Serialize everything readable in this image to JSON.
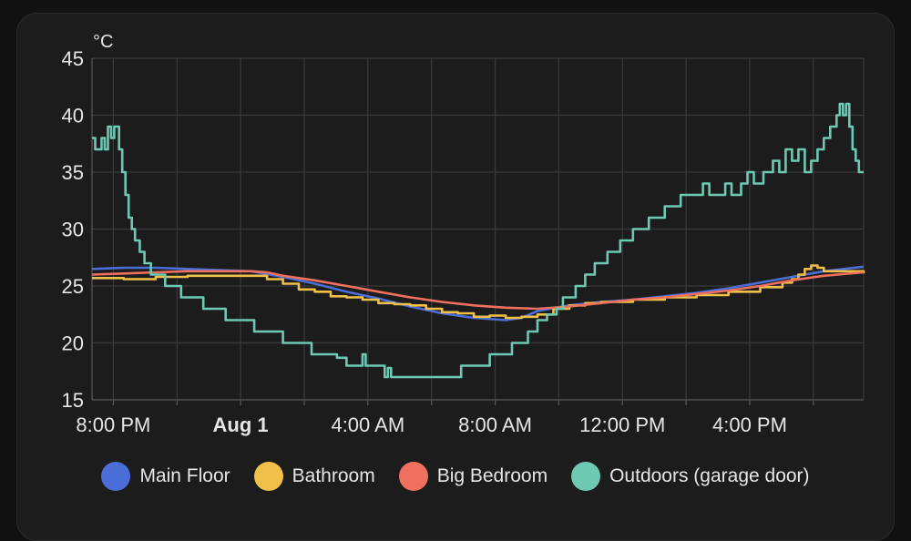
{
  "chart_data": {
    "type": "line",
    "unit": "°C",
    "ylim": [
      15,
      45
    ],
    "y_ticks": [
      15,
      20,
      25,
      30,
      35,
      40,
      45
    ],
    "x_range": [
      "Jul 31 7:20 PM",
      "Aug 1 7:35 PM"
    ],
    "x_ticks": [
      {
        "label": "8:00 PM",
        "t": 0.67,
        "bold": false
      },
      {
        "label": "Aug 1",
        "t": 4.67,
        "bold": true
      },
      {
        "label": "4:00 AM",
        "t": 8.67,
        "bold": false
      },
      {
        "label": "8:00 AM",
        "t": 12.67,
        "bold": false
      },
      {
        "label": "12:00 PM",
        "t": 16.67,
        "bold": false
      },
      {
        "label": "4:00 PM",
        "t": 20.67,
        "bold": false
      }
    ],
    "x_minor_ticks": [
      2.67,
      6.67,
      10.67,
      14.67,
      18.67,
      22.67
    ],
    "grid": true,
    "legend_position": "bottom",
    "series": [
      {
        "name": "Main Floor",
        "color": "#4a6dd8",
        "step": false,
        "points": [
          [
            0,
            26.5
          ],
          [
            1,
            26.6
          ],
          [
            2,
            26.6
          ],
          [
            3,
            26.5
          ],
          [
            4,
            26.4
          ],
          [
            5,
            26.3
          ],
          [
            6,
            25.8
          ],
          [
            7,
            25.2
          ],
          [
            8,
            24.5
          ],
          [
            9,
            23.9
          ],
          [
            10,
            23.2
          ],
          [
            11,
            22.6
          ],
          [
            12,
            22.2
          ],
          [
            13,
            22.0
          ],
          [
            13.5,
            22.2
          ],
          [
            14,
            22.8
          ],
          [
            15,
            23.3
          ],
          [
            16,
            23.6
          ],
          [
            17,
            23.8
          ],
          [
            18,
            24.1
          ],
          [
            19,
            24.4
          ],
          [
            20,
            24.8
          ],
          [
            21,
            25.3
          ],
          [
            22,
            25.8
          ],
          [
            23,
            26.3
          ],
          [
            24.25,
            26.7
          ]
        ]
      },
      {
        "name": "Bathroom",
        "color": "#f0c048",
        "step": true,
        "points": [
          [
            0,
            25.7
          ],
          [
            1,
            25.6
          ],
          [
            2,
            25.8
          ],
          [
            3,
            25.9
          ],
          [
            4,
            25.9
          ],
          [
            5,
            25.9
          ],
          [
            5.5,
            25.6
          ],
          [
            6,
            25.2
          ],
          [
            6.5,
            24.7
          ],
          [
            7,
            24.5
          ],
          [
            7.5,
            24.1
          ],
          [
            8,
            24.0
          ],
          [
            8.5,
            23.8
          ],
          [
            9,
            23.5
          ],
          [
            9.5,
            23.4
          ],
          [
            10,
            23.3
          ],
          [
            10.5,
            23.0
          ],
          [
            11,
            22.7
          ],
          [
            11.5,
            22.6
          ],
          [
            12,
            22.3
          ],
          [
            12.5,
            22.4
          ],
          [
            13,
            22.2
          ],
          [
            13.5,
            22.3
          ],
          [
            14,
            22.5
          ],
          [
            14.5,
            23.0
          ],
          [
            15,
            23.3
          ],
          [
            15.5,
            23.5
          ],
          [
            16,
            23.6
          ],
          [
            17,
            23.8
          ],
          [
            18,
            24.0
          ],
          [
            19,
            24.2
          ],
          [
            20,
            24.5
          ],
          [
            21,
            24.9
          ],
          [
            21.7,
            25.3
          ],
          [
            22,
            25.6
          ],
          [
            22.2,
            26.0
          ],
          [
            22.4,
            26.5
          ],
          [
            22.6,
            26.8
          ],
          [
            22.8,
            26.6
          ],
          [
            23,
            26.3
          ],
          [
            24.25,
            26.1
          ]
        ]
      },
      {
        "name": "Big Bedroom",
        "color": "#f07060",
        "step": false,
        "points": [
          [
            0,
            26.0
          ],
          [
            1,
            26.1
          ],
          [
            2,
            26.2
          ],
          [
            3,
            26.3
          ],
          [
            4,
            26.3
          ],
          [
            5,
            26.3
          ],
          [
            5.5,
            26.2
          ],
          [
            6,
            25.9
          ],
          [
            7,
            25.5
          ],
          [
            8,
            25.0
          ],
          [
            9,
            24.5
          ],
          [
            10,
            24.0
          ],
          [
            11,
            23.6
          ],
          [
            12,
            23.3
          ],
          [
            13,
            23.1
          ],
          [
            14,
            23.0
          ],
          [
            15,
            23.2
          ],
          [
            16,
            23.5
          ],
          [
            17,
            23.8
          ],
          [
            18,
            24.0
          ],
          [
            19,
            24.3
          ],
          [
            20,
            24.6
          ],
          [
            21,
            25.0
          ],
          [
            22,
            25.5
          ],
          [
            23,
            25.9
          ],
          [
            24.25,
            26.2
          ]
        ]
      },
      {
        "name": "Outdoors (garage door)",
        "color": "#6ec9b3",
        "step": true,
        "points": [
          [
            0,
            38
          ],
          [
            0.1,
            37
          ],
          [
            0.3,
            38
          ],
          [
            0.4,
            37
          ],
          [
            0.5,
            39
          ],
          [
            0.6,
            38
          ],
          [
            0.7,
            39
          ],
          [
            0.85,
            37
          ],
          [
            0.95,
            35
          ],
          [
            1.05,
            33
          ],
          [
            1.15,
            31
          ],
          [
            1.25,
            30
          ],
          [
            1.35,
            29
          ],
          [
            1.5,
            28
          ],
          [
            1.65,
            27
          ],
          [
            1.85,
            26
          ],
          [
            2.3,
            25
          ],
          [
            2.8,
            24
          ],
          [
            3.5,
            23
          ],
          [
            4.2,
            22
          ],
          [
            5.1,
            21
          ],
          [
            6.0,
            20
          ],
          [
            6.9,
            19
          ],
          [
            7.7,
            18.7
          ],
          [
            8.0,
            18
          ],
          [
            8.5,
            19
          ],
          [
            8.6,
            18
          ],
          [
            9.2,
            17
          ],
          [
            9.3,
            17.8
          ],
          [
            9.4,
            17
          ],
          [
            11.6,
            18
          ],
          [
            12.5,
            19
          ],
          [
            13.0,
            19
          ],
          [
            13.2,
            20
          ],
          [
            13.5,
            20
          ],
          [
            13.7,
            21
          ],
          [
            14.0,
            22
          ],
          [
            14.3,
            22.5
          ],
          [
            14.6,
            23
          ],
          [
            14.8,
            24
          ],
          [
            15.2,
            25
          ],
          [
            15.5,
            26
          ],
          [
            15.8,
            27
          ],
          [
            16.2,
            28
          ],
          [
            16.6,
            29
          ],
          [
            17.0,
            30
          ],
          [
            17.5,
            31
          ],
          [
            18.0,
            32
          ],
          [
            18.5,
            33
          ],
          [
            19.0,
            33
          ],
          [
            19.2,
            34
          ],
          [
            19.4,
            33
          ],
          [
            19.7,
            33
          ],
          [
            19.9,
            34
          ],
          [
            20.1,
            33
          ],
          [
            20.4,
            34
          ],
          [
            20.6,
            35
          ],
          [
            20.8,
            34
          ],
          [
            21.1,
            35
          ],
          [
            21.4,
            36
          ],
          [
            21.6,
            35
          ],
          [
            21.8,
            37
          ],
          [
            22.0,
            36
          ],
          [
            22.2,
            37
          ],
          [
            22.4,
            35
          ],
          [
            22.6,
            36
          ],
          [
            22.8,
            37
          ],
          [
            23.0,
            38
          ],
          [
            23.2,
            39
          ],
          [
            23.4,
            40
          ],
          [
            23.5,
            41
          ],
          [
            23.6,
            40
          ],
          [
            23.7,
            41
          ],
          [
            23.8,
            39
          ],
          [
            23.9,
            37
          ],
          [
            24.0,
            36
          ],
          [
            24.1,
            35
          ],
          [
            24.25,
            35
          ]
        ]
      }
    ]
  }
}
